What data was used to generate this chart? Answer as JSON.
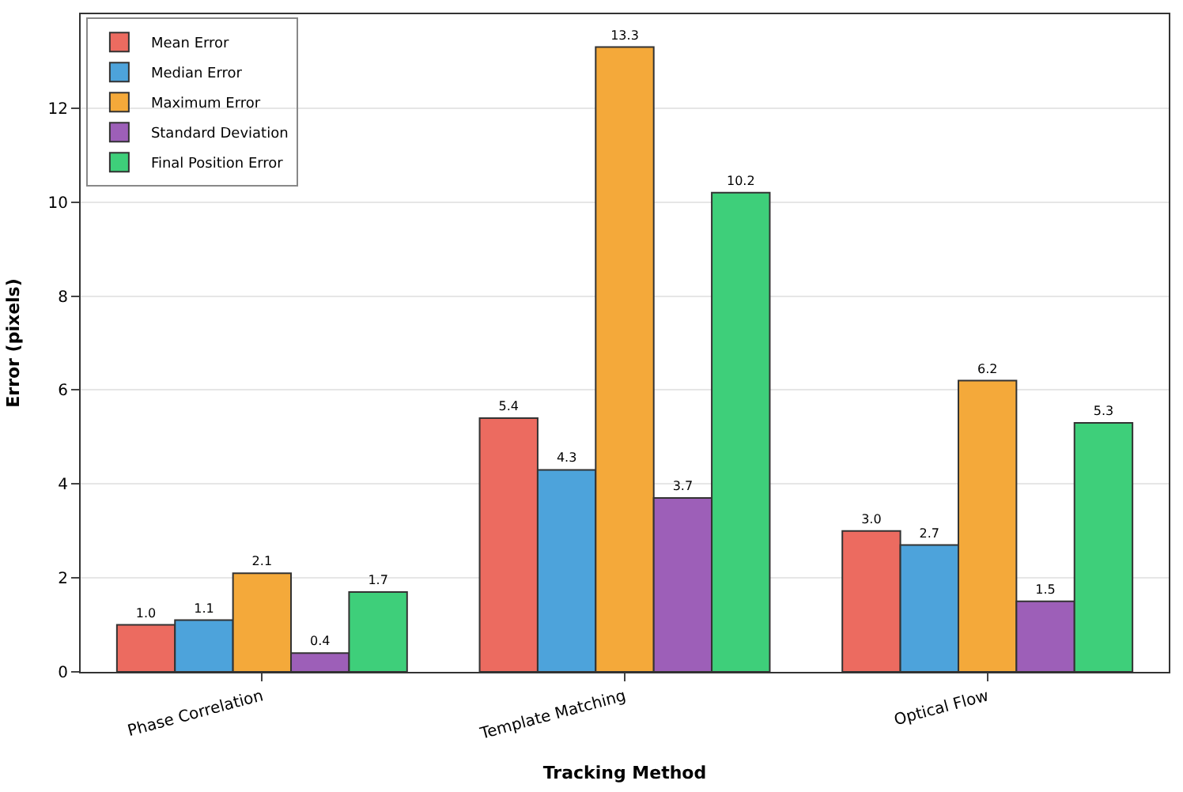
{
  "chart_data": {
    "type": "bar",
    "xlabel": "Tracking Method",
    "ylabel": "Error (pixels)",
    "categories": [
      "Phase Correlation",
      "Template Matching",
      "Optical Flow"
    ],
    "series": [
      {
        "name": "Mean Error",
        "color": "#ec6b60",
        "values": [
          1.0,
          5.4,
          3.0
        ],
        "value_labels": [
          "1.0",
          "5.4",
          "3.0"
        ]
      },
      {
        "name": "Median Error",
        "color": "#4da3db",
        "values": [
          1.1,
          4.3,
          2.7
        ],
        "value_labels": [
          "1.1",
          "4.3",
          "2.7"
        ]
      },
      {
        "name": "Maximum Error",
        "color": "#f4a93a",
        "values": [
          2.1,
          13.3,
          6.2
        ],
        "value_labels": [
          "2.1",
          "13.3",
          "6.2"
        ]
      },
      {
        "name": "Standard Deviation",
        "color": "#9d5fb8",
        "values": [
          0.4,
          3.7,
          1.5
        ],
        "value_labels": [
          "0.4",
          "3.7",
          "1.5"
        ]
      },
      {
        "name": "Final Position Error",
        "color": "#3ecf7a",
        "values": [
          1.7,
          10.2,
          5.3
        ],
        "value_labels": [
          "1.7",
          "10.2",
          "5.3"
        ]
      }
    ],
    "ylim": [
      0,
      14
    ],
    "yticks": [
      0,
      2,
      4,
      6,
      8,
      10,
      12
    ],
    "grid": "y",
    "legend": "top left"
  }
}
